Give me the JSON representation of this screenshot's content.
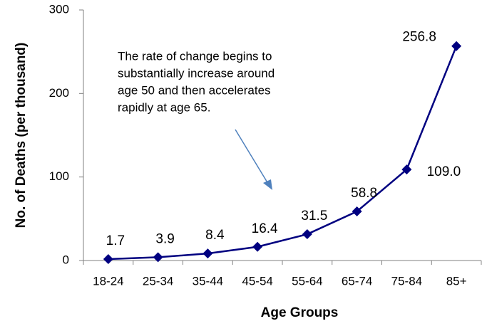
{
  "chart_data": {
    "type": "line",
    "categories": [
      "18-24",
      "25-34",
      "35-44",
      "45-54",
      "55-64",
      "65-74",
      "75-84",
      "85+"
    ],
    "series": [
      {
        "color": "#000080",
        "values": [
          1.7,
          3.9,
          8.4,
          16.4,
          31.5,
          58.8,
          109.0,
          256.8
        ],
        "value_labels": [
          "1.7",
          "3.9",
          "8.4",
          "16.4",
          "31.5",
          "58.8",
          "109.0",
          "256.8"
        ]
      }
    ],
    "ylim": [
      0,
      300
    ],
    "yticks": [
      0,
      100,
      200,
      300
    ],
    "x_label": "Age Groups",
    "y_label": "No. of Deaths (per thousand)",
    "annotation": [
      "The rate of change begins to",
      "substantially increase around",
      "age 50 and then accelerates",
      "rapidly at age 65."
    ]
  }
}
